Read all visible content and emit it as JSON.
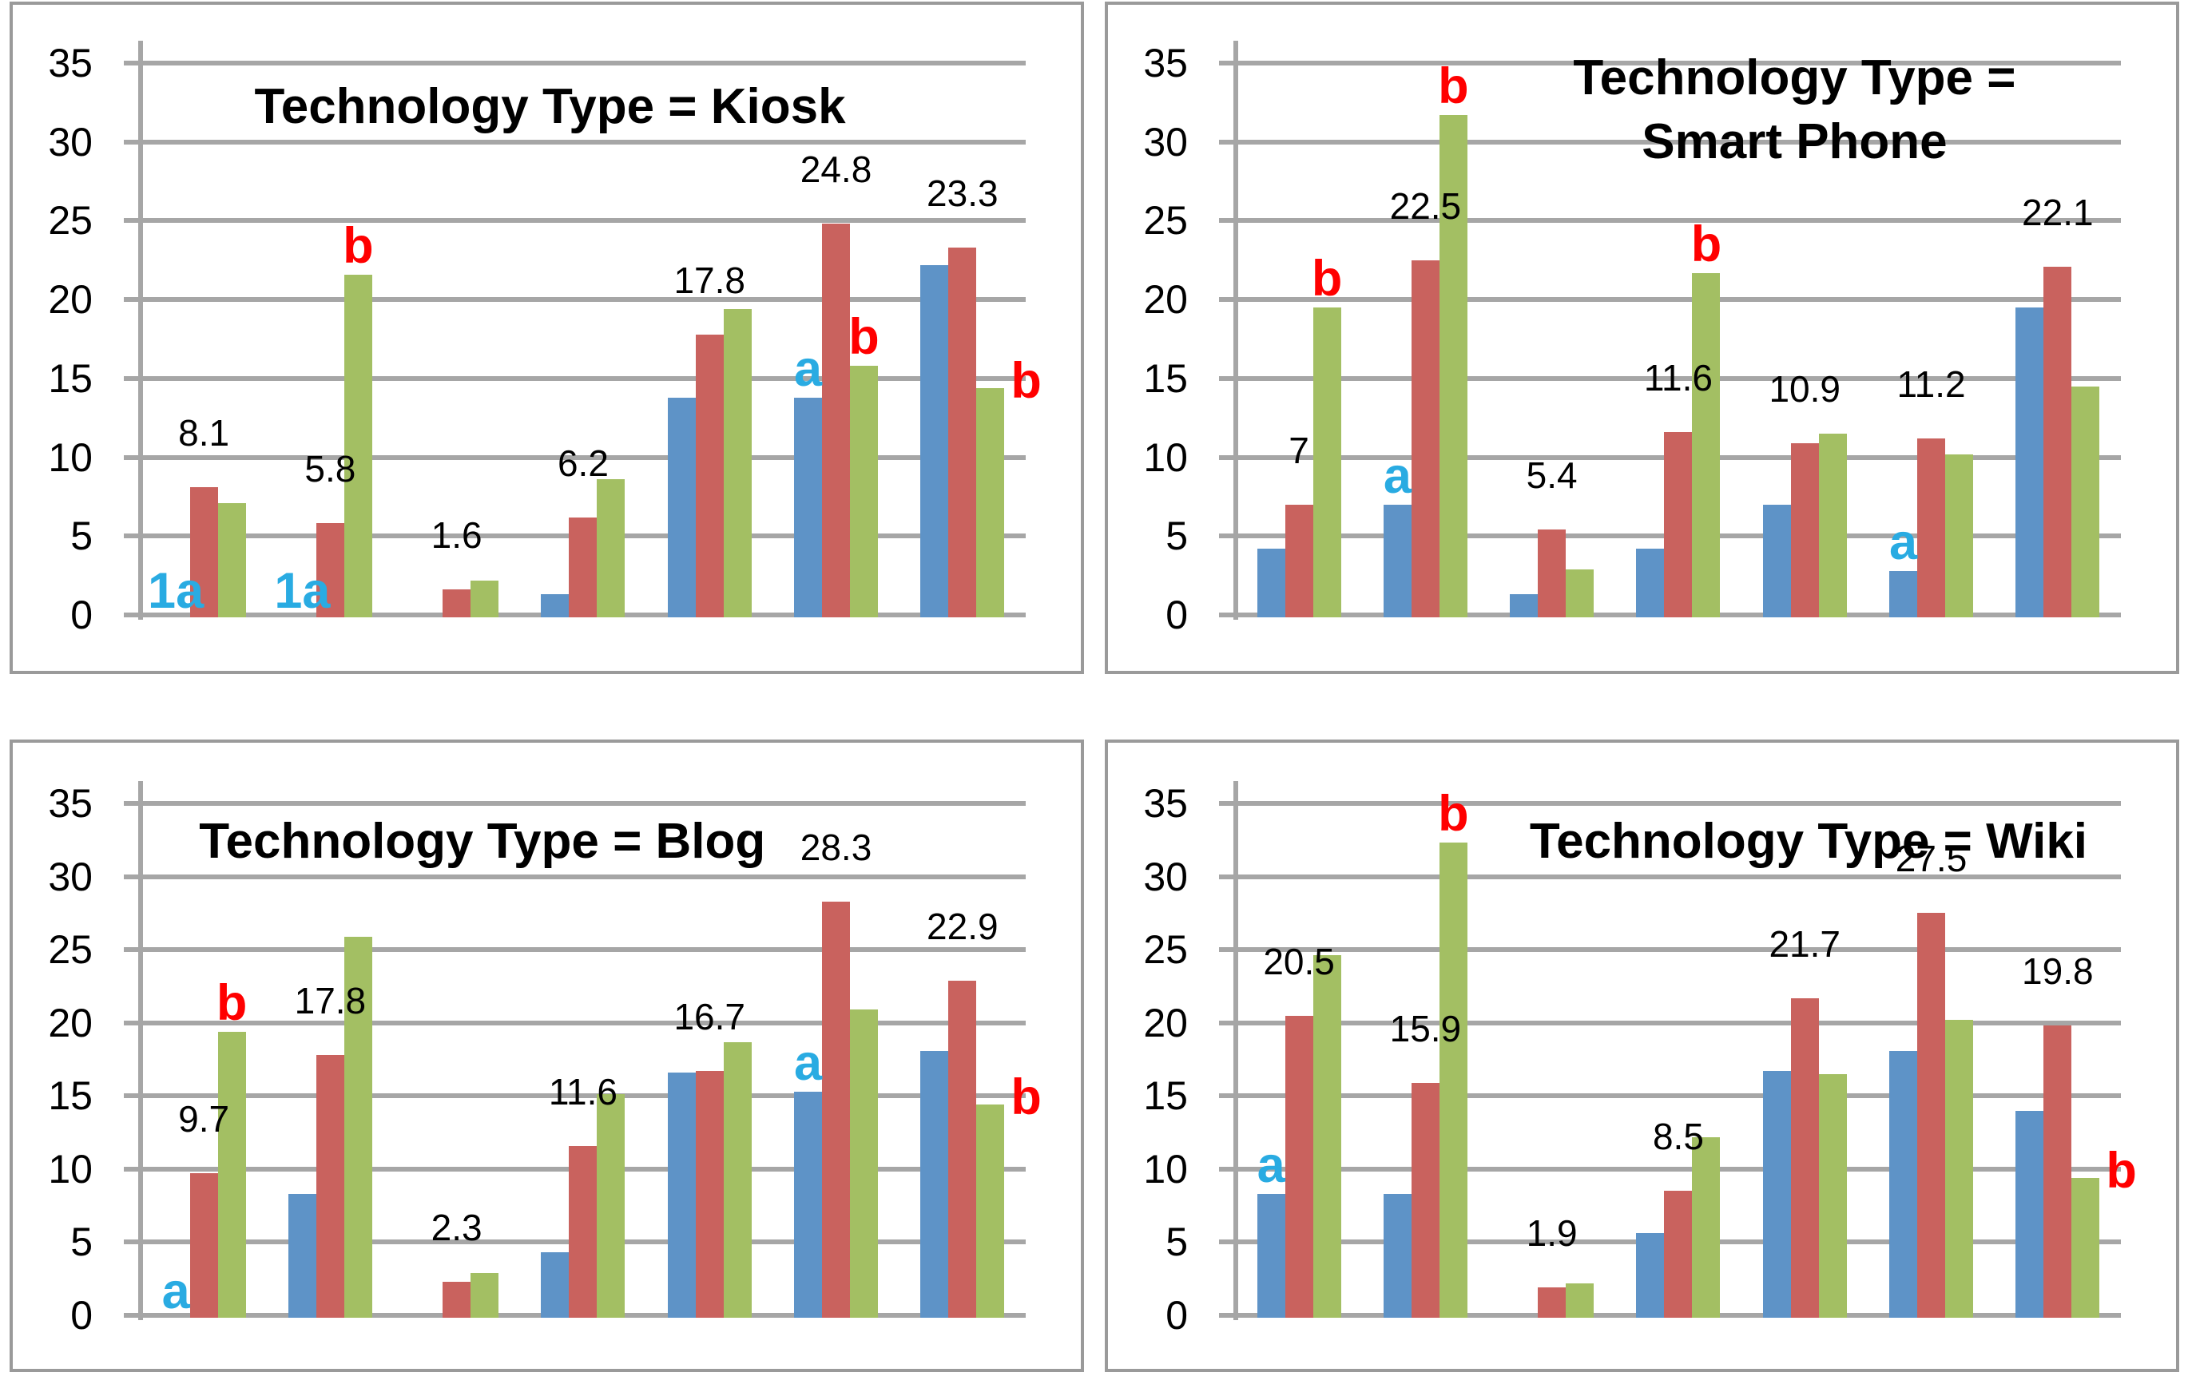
{
  "colors": {
    "series": [
      {
        "name": "blue",
        "hex": "#5E93C7"
      },
      {
        "name": "red",
        "hex": "#C9625E"
      },
      {
        "name": "green",
        "hex": "#A3BF63"
      }
    ],
    "gridline": "#A6A6A6",
    "axis_line": "#A6A6A6",
    "panel_border": "#9A9A9A",
    "annotation_cyan": "#29ABE2",
    "annotation_red": "#FF0000",
    "value_label": "#000000",
    "title": "#000000"
  },
  "chart_data": [
    {
      "type": "bar",
      "id": "kiosk",
      "title_lines": [
        "Technology Type = Kiosk"
      ],
      "ylim": [
        0,
        35
      ],
      "y_ticks": [
        35,
        30,
        25,
        20,
        15,
        10,
        5,
        0
      ],
      "grid": true,
      "legend": "none",
      "series_names": [
        "blue",
        "red",
        "green"
      ],
      "layout_hints": {
        "row": "top",
        "title_center_frac": 0.5,
        "title_top": 88
      },
      "groups": [
        {
          "values": [
            0,
            8.1,
            7.1
          ],
          "label": {
            "text": "8.1",
            "series": 1
          },
          "annotations": [
            {
              "text": "1a",
              "color": "cyan",
              "series": 0,
              "placement": "baseline"
            }
          ]
        },
        {
          "values": [
            0,
            5.8,
            21.6
          ],
          "label": {
            "text": "5.8",
            "series": 1
          },
          "annotations": [
            {
              "text": "1a",
              "color": "cyan",
              "series": 0,
              "placement": "baseline"
            },
            {
              "text": "b",
              "color": "red",
              "series": 2,
              "placement": "top"
            }
          ]
        },
        {
          "values": [
            0,
            1.6,
            2.2
          ],
          "label": {
            "text": "1.6",
            "series": 1
          },
          "annotations": []
        },
        {
          "values": [
            1.3,
            6.2,
            8.6
          ],
          "label": {
            "text": "6.2",
            "series": 1
          },
          "annotations": []
        },
        {
          "values": [
            13.8,
            17.8,
            19.4
          ],
          "label": {
            "text": "17.8",
            "series": 1
          },
          "annotations": []
        },
        {
          "values": [
            13.8,
            24.8,
            15.8
          ],
          "label": {
            "text": "24.8",
            "series": 1
          },
          "annotations": [
            {
              "text": "a",
              "color": "cyan",
              "series": 0,
              "placement": "top"
            },
            {
              "text": "b",
              "color": "red",
              "series": 2,
              "placement": "top"
            }
          ]
        },
        {
          "values": [
            22.2,
            23.3,
            14.4
          ],
          "label": {
            "text": "23.3",
            "series": 1
          },
          "annotations": [
            {
              "text": "b",
              "color": "red",
              "series": 2,
              "placement": "right"
            }
          ]
        }
      ]
    },
    {
      "type": "bar",
      "id": "smart-phone",
      "title_lines": [
        "Technology Type =",
        "Smart Phone"
      ],
      "ylim": [
        0,
        35
      ],
      "y_ticks": [
        35,
        30,
        25,
        20,
        15,
        10,
        5,
        0
      ],
      "grid": true,
      "legend": "none",
      "series_names": [
        "blue",
        "red",
        "green"
      ],
      "layout_hints": {
        "row": "top",
        "title_center_frac": 0.639,
        "title_top": 52
      },
      "groups": [
        {
          "values": [
            4.2,
            7,
            19.5
          ],
          "label": {
            "text": "7",
            "series": 1
          },
          "annotations": [
            {
              "text": "b",
              "color": "red",
              "series": 2,
              "placement": "top"
            }
          ]
        },
        {
          "values": [
            7,
            22.5,
            31.7
          ],
          "label": {
            "text": "22.5",
            "series": 1
          },
          "annotations": [
            {
              "text": "a",
              "color": "cyan",
              "series": 0,
              "placement": "top"
            },
            {
              "text": "b",
              "color": "red",
              "series": 2,
              "placement": "top"
            }
          ]
        },
        {
          "values": [
            1.3,
            5.4,
            2.9
          ],
          "label": {
            "text": "5.4",
            "series": 1
          },
          "annotations": []
        },
        {
          "values": [
            4.2,
            11.6,
            21.7
          ],
          "label": {
            "text": "11.6",
            "series": 1
          },
          "annotations": [
            {
              "text": "b",
              "color": "red",
              "series": 2,
              "placement": "top"
            }
          ]
        },
        {
          "values": [
            7,
            10.9,
            11.5
          ],
          "label": {
            "text": "10.9",
            "series": 1
          },
          "annotations": []
        },
        {
          "values": [
            2.8,
            11.2,
            10.2
          ],
          "label": {
            "text": "11.2",
            "series": 1
          },
          "annotations": [
            {
              "text": "a",
              "color": "cyan",
              "series": 0,
              "placement": "top"
            }
          ]
        },
        {
          "values": [
            19.5,
            22.1,
            14.5
          ],
          "label": {
            "text": "22.1",
            "series": 1
          },
          "annotations": []
        }
      ]
    },
    {
      "type": "bar",
      "id": "blog",
      "title_lines": [
        "Technology Type = Blog"
      ],
      "ylim": [
        0,
        35
      ],
      "y_ticks": [
        35,
        30,
        25,
        20,
        15,
        10,
        5,
        0
      ],
      "grid": true,
      "legend": "none",
      "series_names": [
        "blue",
        "red",
        "green"
      ],
      "layout_hints": {
        "row": "bottom",
        "title_center_frac": 0.437,
        "title_top": 84
      },
      "groups": [
        {
          "values": [
            0,
            9.7,
            19.4
          ],
          "label": {
            "text": "9.7",
            "series": 1
          },
          "annotations": [
            {
              "text": "a",
              "color": "cyan",
              "series": 0,
              "placement": "baseline"
            },
            {
              "text": "b",
              "color": "red",
              "series": 2,
              "placement": "top"
            }
          ]
        },
        {
          "values": [
            8.3,
            17.8,
            25.9
          ],
          "label": {
            "text": "17.8",
            "series": 1
          },
          "annotations": []
        },
        {
          "values": [
            0,
            2.3,
            2.9
          ],
          "label": {
            "text": "2.3",
            "series": 1
          },
          "annotations": []
        },
        {
          "values": [
            4.3,
            11.6,
            15.1
          ],
          "label": {
            "text": "11.6",
            "series": 1
          },
          "annotations": []
        },
        {
          "values": [
            16.6,
            16.7,
            18.7
          ],
          "label": {
            "text": "16.7",
            "series": 1
          },
          "annotations": []
        },
        {
          "values": [
            15.3,
            28.3,
            20.9
          ],
          "label": {
            "text": "28.3",
            "series": 1
          },
          "annotations": [
            {
              "text": "a",
              "color": "cyan",
              "series": 0,
              "placement": "top"
            }
          ]
        },
        {
          "values": [
            18.1,
            22.9,
            14.4
          ],
          "label": {
            "text": "22.9",
            "series": 1
          },
          "annotations": [
            {
              "text": "b",
              "color": "red",
              "series": 2,
              "placement": "right"
            }
          ]
        }
      ]
    },
    {
      "type": "bar",
      "id": "wiki",
      "title_lines": [
        "Technology Type = Wiki"
      ],
      "ylim": [
        0,
        35
      ],
      "y_ticks": [
        35,
        30,
        25,
        20,
        15,
        10,
        5,
        0
      ],
      "grid": true,
      "legend": "none",
      "series_names": [
        "blue",
        "red",
        "green"
      ],
      "layout_hints": {
        "row": "bottom",
        "title_center_frac": 0.652,
        "title_top": 84
      },
      "groups": [
        {
          "values": [
            8.3,
            20.5,
            24.6
          ],
          "label": {
            "text": "20.5",
            "series": 1
          },
          "annotations": [
            {
              "text": "a",
              "color": "cyan",
              "series": 0,
              "placement": "top"
            }
          ]
        },
        {
          "values": [
            8.3,
            15.9,
            32.3
          ],
          "label": {
            "text": "15.9",
            "series": 1
          },
          "annotations": [
            {
              "text": "b",
              "color": "red",
              "series": 2,
              "placement": "top"
            }
          ]
        },
        {
          "values": [
            0,
            1.9,
            2.2
          ],
          "label": {
            "text": "1.9",
            "series": 1
          },
          "annotations": []
        },
        {
          "values": [
            5.6,
            8.5,
            12.2
          ],
          "label": {
            "text": "8.5",
            "series": 1
          },
          "annotations": []
        },
        {
          "values": [
            16.7,
            21.7,
            16.5
          ],
          "label": {
            "text": "21.7",
            "series": 1
          },
          "annotations": []
        },
        {
          "values": [
            18.1,
            27.5,
            20.2
          ],
          "label": {
            "text": "27.5",
            "series": 1
          },
          "annotations": []
        },
        {
          "values": [
            14,
            19.8,
            9.4
          ],
          "label": {
            "text": "19.8",
            "series": 1
          },
          "annotations": [
            {
              "text": "b",
              "color": "red",
              "series": 2,
              "placement": "right"
            }
          ]
        }
      ]
    }
  ]
}
